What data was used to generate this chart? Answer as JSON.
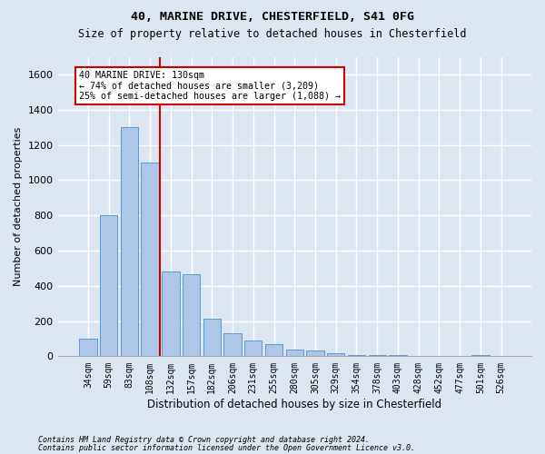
{
  "title1": "40, MARINE DRIVE, CHESTERFIELD, S41 0FG",
  "title2": "Size of property relative to detached houses in Chesterfield",
  "xlabel": "Distribution of detached houses by size in Chesterfield",
  "ylabel": "Number of detached properties",
  "categories": [
    "34sqm",
    "59sqm",
    "83sqm",
    "108sqm",
    "132sqm",
    "157sqm",
    "182sqm",
    "206sqm",
    "231sqm",
    "255sqm",
    "280sqm",
    "305sqm",
    "329sqm",
    "354sqm",
    "378sqm",
    "403sqm",
    "428sqm",
    "452sqm",
    "477sqm",
    "501sqm",
    "526sqm"
  ],
  "values": [
    100,
    800,
    1300,
    1100,
    480,
    465,
    215,
    130,
    90,
    70,
    40,
    35,
    20,
    8,
    8,
    8,
    0,
    0,
    0,
    8,
    0
  ],
  "bar_color": "#aec6e8",
  "bar_edge_color": "#5b9bd5",
  "bg_color": "#dce6f1",
  "grid_color": "#ffffff",
  "vline_color": "#cc0000",
  "annotation_line1": "40 MARINE DRIVE: 130sqm",
  "annotation_line2": "← 74% of detached houses are smaller (3,209)",
  "annotation_line3": "25% of semi-detached houses are larger (1,088) →",
  "annotation_box_color": "#ffffff",
  "annotation_box_edge": "#cc0000",
  "ylim": [
    0,
    1700
  ],
  "yticks": [
    0,
    200,
    400,
    600,
    800,
    1000,
    1200,
    1400,
    1600
  ],
  "footer1": "Contains HM Land Registry data © Crown copyright and database right 2024.",
  "footer2": "Contains public sector information licensed under the Open Government Licence v3.0."
}
